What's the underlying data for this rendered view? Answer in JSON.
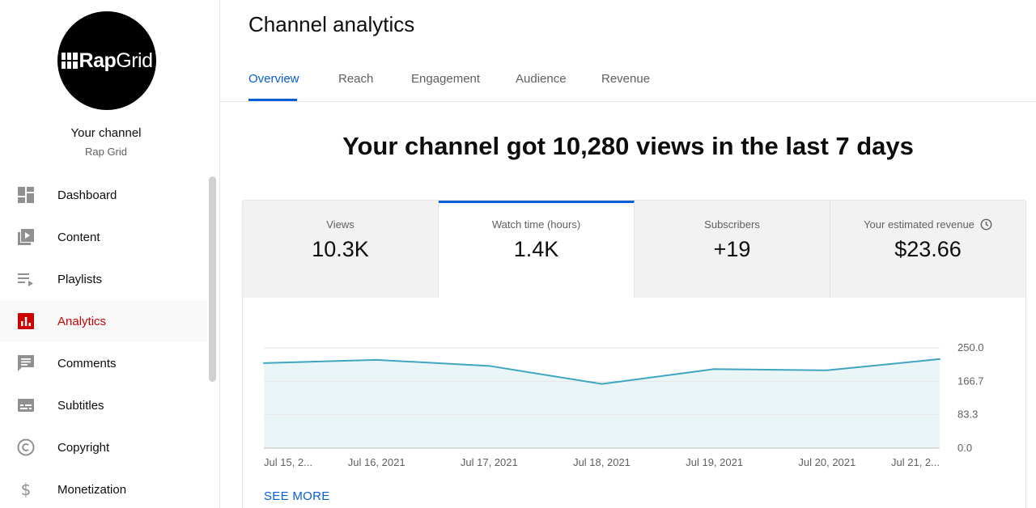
{
  "sidebar": {
    "avatar": {
      "logo_text_bold": "Rap",
      "logo_text_light": "Grid"
    },
    "channel_title": "Your channel",
    "channel_name": "Rap Grid",
    "items": [
      {
        "label": "Dashboard",
        "icon": "dashboard-icon"
      },
      {
        "label": "Content",
        "icon": "content-icon"
      },
      {
        "label": "Playlists",
        "icon": "playlists-icon"
      },
      {
        "label": "Analytics",
        "icon": "analytics-icon",
        "active": true
      },
      {
        "label": "Comments",
        "icon": "comments-icon"
      },
      {
        "label": "Subtitles",
        "icon": "subtitles-icon"
      },
      {
        "label": "Copyright",
        "icon": "copyright-icon"
      },
      {
        "label": "Monetization",
        "icon": "monetization-icon"
      }
    ]
  },
  "header": {
    "title": "Channel analytics",
    "tabs": [
      {
        "label": "Overview",
        "active": true
      },
      {
        "label": "Reach"
      },
      {
        "label": "Engagement"
      },
      {
        "label": "Audience"
      },
      {
        "label": "Revenue"
      }
    ]
  },
  "headline": "Your channel got 10,280 views in the last 7 days",
  "metrics": [
    {
      "label": "Views",
      "value": "10.3K"
    },
    {
      "label": "Watch time (hours)",
      "value": "1.4K",
      "active": true
    },
    {
      "label": "Subscribers",
      "value": "+19"
    },
    {
      "label": "Your estimated revenue",
      "value": "$23.66",
      "icon": "clock-icon"
    }
  ],
  "see_more": "SEE MORE",
  "colors": {
    "accent": "#065fd4",
    "active_nav": "#cc0000",
    "line": "#3ea6c0",
    "area": "#eaf5f8"
  },
  "chart_data": {
    "type": "area",
    "x": [
      "Jul 15, 2...",
      "Jul 16, 2021",
      "Jul 17, 2021",
      "Jul 18, 2021",
      "Jul 19, 2021",
      "Jul 20, 2021",
      "Jul 21, 2..."
    ],
    "series": [
      {
        "values": [
          212,
          220,
          205,
          160,
          197,
          194,
          222
        ]
      }
    ],
    "y_ticks": [
      "250.0",
      "166.7",
      "83.3",
      "0.0"
    ],
    "ylim": [
      0,
      250
    ],
    "grid": true,
    "ylabel_position": "right"
  }
}
